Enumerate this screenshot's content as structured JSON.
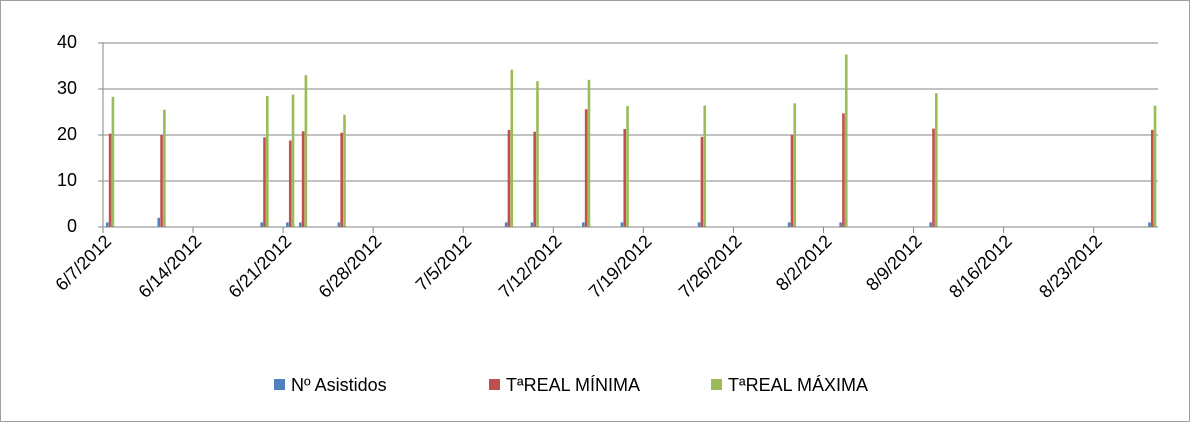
{
  "chart_data": {
    "type": "bar",
    "x": [
      "6/7/2012",
      "6/11/2012",
      "6/19/2012",
      "6/21/2012",
      "6/22/2012",
      "6/25/2012",
      "7/8/2012",
      "7/10/2012",
      "7/14/2012",
      "7/17/2012",
      "7/23/2012",
      "7/30/2012",
      "8/3/2012",
      "8/10/2012",
      "8/27/2012"
    ],
    "series": [
      {
        "name": "Nº Asistidos",
        "color": "#4f81bd",
        "values": [
          1,
          2,
          1,
          1,
          1,
          1,
          1,
          1,
          1,
          1,
          1,
          1,
          1,
          1,
          1
        ]
      },
      {
        "name": "TªREAL MÍNIMA",
        "color": "#c0504d",
        "values": [
          20.3,
          20,
          19.5,
          18.8,
          20.8,
          20.5,
          21.1,
          20.7,
          25.6,
          21.3,
          19.6,
          20.1,
          24.7,
          21.4,
          21.1
        ]
      },
      {
        "name": "TªREAL MÁXIMA",
        "color": "#9bbb59",
        "values": [
          28.3,
          25.5,
          28.5,
          28.8,
          33,
          24.4,
          34.2,
          31.7,
          32,
          26.3,
          26.4,
          26.9,
          37.5,
          29.1,
          26.4
        ]
      }
    ],
    "xlim": [
      "6/7/2012",
      "8/28/2012"
    ],
    "xticks": [
      "6/7/2012",
      "6/14/2012",
      "6/21/2012",
      "6/28/2012",
      "7/5/2012",
      "7/12/2012",
      "7/19/2012",
      "7/26/2012",
      "8/2/2012",
      "8/9/2012",
      "8/16/2012",
      "8/23/2012"
    ],
    "ylim": [
      0,
      40
    ],
    "yticks": [
      0,
      10,
      20,
      30,
      40
    ],
    "grid": true,
    "legend": "bottom"
  }
}
